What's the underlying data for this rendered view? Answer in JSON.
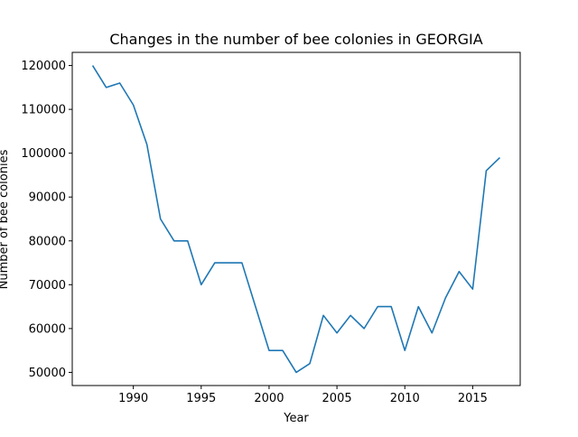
{
  "chart_data": {
    "type": "line",
    "title": "Changes in the number of bee colonies in GEORGIA",
    "xlabel": "Year",
    "ylabel": "Number of bee colonies",
    "xlim": [
      1985.5,
      2018.5
    ],
    "ylim": [
      47000,
      123000
    ],
    "xticks": [
      1990,
      1995,
      2000,
      2005,
      2010,
      2015
    ],
    "yticks": [
      50000,
      60000,
      70000,
      80000,
      90000,
      100000,
      110000,
      120000
    ],
    "grid": false,
    "legend": "none",
    "series": [
      {
        "color": "#1f77b4",
        "x": [
          1987,
          1988,
          1989,
          1990,
          1991,
          1992,
          1993,
          1994,
          1995,
          1996,
          1997,
          1998,
          1999,
          2000,
          2001,
          2002,
          2003,
          2004,
          2005,
          2006,
          2007,
          2008,
          2009,
          2010,
          2011,
          2012,
          2013,
          2014,
          2015,
          2016,
          2017
        ],
        "y": [
          120000,
          115000,
          116000,
          111000,
          102000,
          85000,
          80000,
          80000,
          70000,
          75000,
          75000,
          75000,
          65000,
          55000,
          55000,
          50000,
          52000,
          63000,
          59000,
          63000,
          60000,
          65000,
          65000,
          55000,
          65000,
          59000,
          67000,
          73000,
          69000,
          96000,
          99000
        ]
      }
    ]
  }
}
